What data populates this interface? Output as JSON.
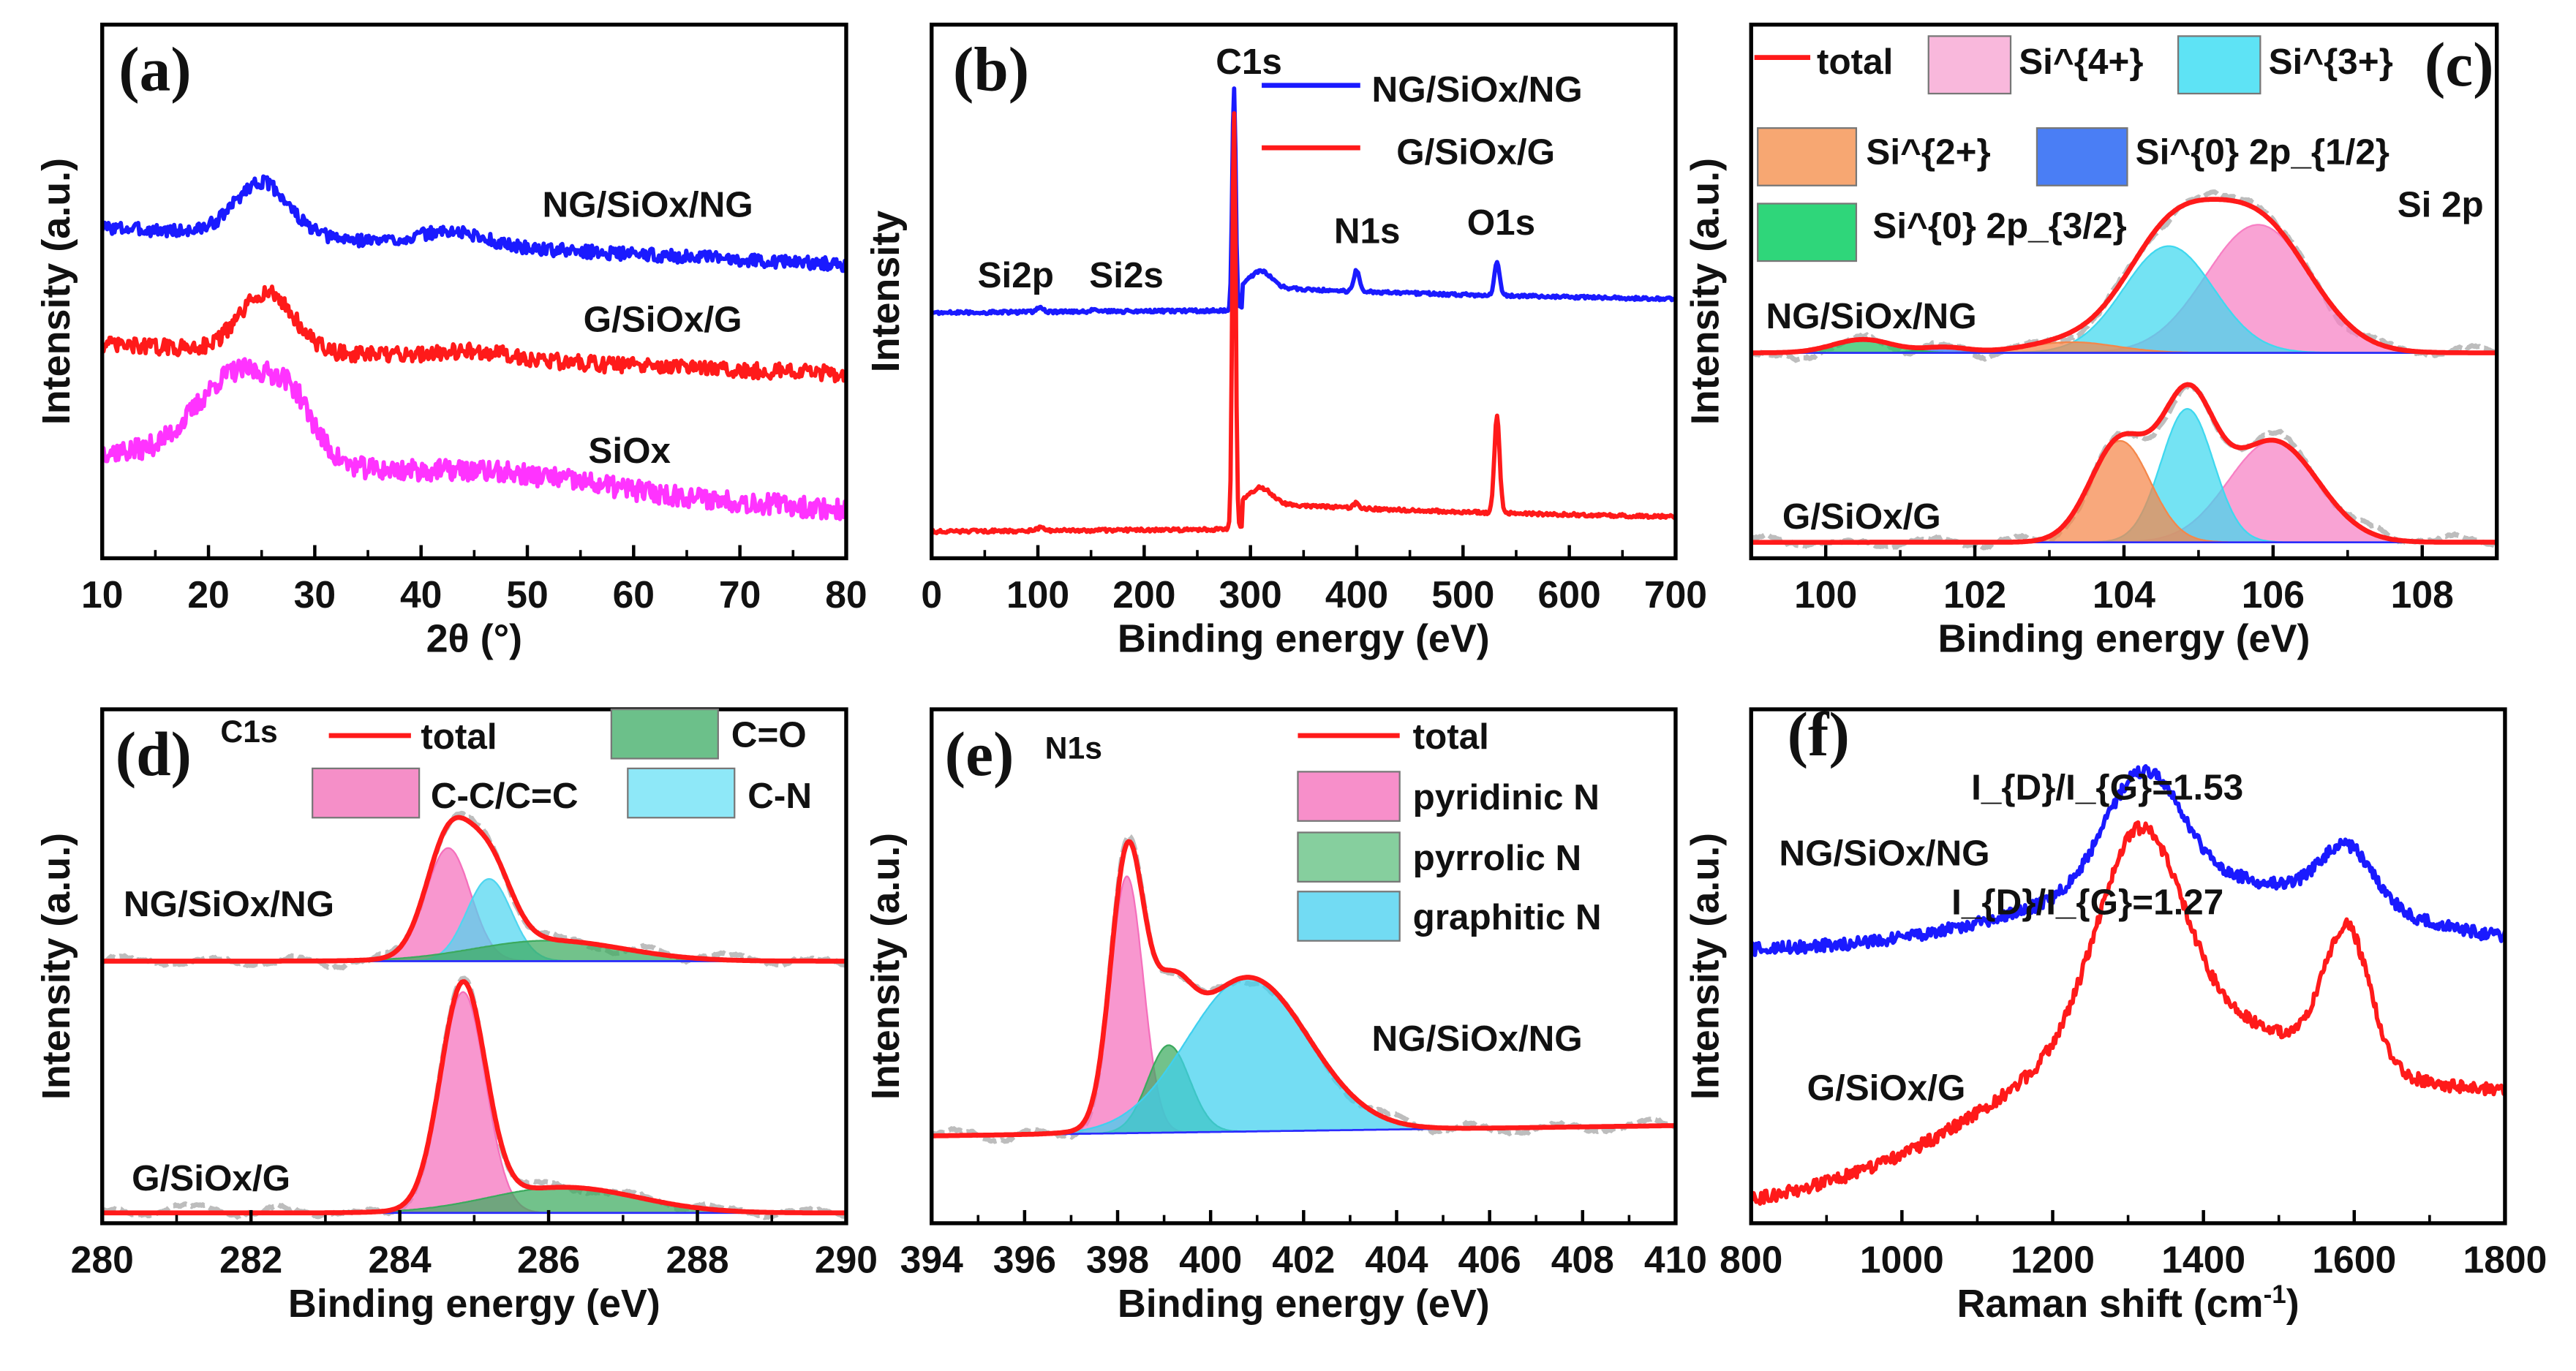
{
  "chart_data": [
    {
      "panel": "(a)",
      "type": "line",
      "xlabel": "2θ (°)",
      "ylabel": "Intensity (a.u.)",
      "xlim": [
        10,
        80
      ],
      "xticks": [
        10,
        20,
        30,
        40,
        50,
        60,
        70,
        80
      ],
      "ylim": [
        0,
        1
      ],
      "annotations": [
        "NG/SiOx/NG",
        "G/SiOx/G",
        "SiOx"
      ],
      "legend": [],
      "series": [
        {
          "name": "NG/SiOx/NG",
          "color": "#1a1aff",
          "offset": 0.62,
          "slope": -0.07,
          "noise": 0.012,
          "peaks": [
            [
              25,
              0.1,
              2.5
            ],
            [
              43,
              0.025,
              3
            ]
          ]
        },
        {
          "name": "G/SiOx/G",
          "color": "#ff1a1a",
          "offset": 0.4,
          "slope": -0.055,
          "noise": 0.015,
          "peaks": [
            [
              25.5,
              0.11,
              2.5
            ],
            [
              45,
              0.015,
              4
            ]
          ]
        },
        {
          "name": "SiOx",
          "color": "#ff33ff",
          "offset": 0.2,
          "slope": -0.11,
          "noise": 0.02,
          "peaks": [
            [
              23,
              0.17,
              4
            ],
            [
              28,
              0.07,
              2
            ],
            [
              48,
              0.02,
              8
            ]
          ]
        }
      ]
    },
    {
      "panel": "(b)",
      "type": "line",
      "xlabel": "Binding energy (eV)",
      "ylabel": "Intensity",
      "xlim": [
        0,
        700
      ],
      "xticks": [
        0,
        100,
        200,
        300,
        400,
        500,
        600,
        700
      ],
      "ylim": [
        0,
        1
      ],
      "annotations": [
        "C1s",
        "Si2p",
        "Si2s",
        "N1s",
        "O1s"
      ],
      "legend": [
        {
          "label": "NG/SiOx/NG",
          "kind": "line",
          "color": "#1a1aff"
        },
        {
          "label": "G/SiOx/G",
          "kind": "line",
          "color": "#ff1a1a"
        }
      ],
      "series": [
        {
          "name": "NG/SiOx/NG",
          "color": "#1a1aff",
          "offset": 0.46,
          "slope": 0.01,
          "noise": 0.003,
          "step": [
            292,
            0.045
          ],
          "peaks": [
            [
              284.5,
              0.42,
              1.6
            ],
            [
              310,
              0.03,
              10
            ],
            [
              400,
              0.04,
              2.5
            ],
            [
              532,
              0.06,
              2.5
            ],
            [
              102,
              0.01,
              3
            ],
            [
              153,
              0.006,
              3
            ]
          ]
        },
        {
          "name": "G/SiOx/G",
          "color": "#ff1a1a",
          "offset": 0.05,
          "slope": 0.01,
          "noise": 0.003,
          "step": [
            292,
            0.05
          ],
          "peaks": [
            [
              284.5,
              0.78,
              1.6
            ],
            [
              310,
              0.03,
              10
            ],
            [
              400,
              0.01,
              2.5
            ],
            [
              532,
              0.18,
              2.5
            ],
            [
              102,
              0.006,
              3
            ]
          ]
        }
      ]
    },
    {
      "panel": "(c)",
      "type": "area",
      "title": "Si 2p",
      "xlabel": "Binding energy (eV)",
      "ylabel": "Intensity (a.u.)",
      "xlim": [
        99,
        109
      ],
      "xticks": [
        100,
        102,
        104,
        106,
        108
      ],
      "ylim": [
        0,
        1
      ],
      "annotations": [
        "NG/SiOx/NG",
        "G/SiOx/G"
      ],
      "legend": [
        {
          "label": "total",
          "kind": "line",
          "color": "#ff1a1a"
        },
        {
          "label": "Si^{4+}",
          "kind": "box",
          "color": "#f9b8dc"
        },
        {
          "label": "Si^{3+}",
          "kind": "box",
          "color": "#5ee3f5"
        },
        {
          "label": "Si^{2+}",
          "kind": "box",
          "color": "#f7a772"
        },
        {
          "label": "Si^{0} 2p_{1/2}",
          "kind": "box",
          "color": "#4a7ef5"
        },
        {
          "label": "Si^{0}  2p_{3/2}",
          "kind": "box",
          "color": "#2fd67a"
        }
      ],
      "series": [
        {
          "name": "NG/SiOx/NG",
          "total_color": "#ff1a1a",
          "offset": 0.385,
          "slope": 0.0,
          "raw": true,
          "components": [
            {
              "name": "Si4+",
              "color": "#f77fc4",
              "peak": [
                105.8,
                0.24,
                0.7
              ]
            },
            {
              "name": "Si3+",
              "color": "#3fd8ef",
              "peak": [
                104.6,
                0.2,
                0.6
              ]
            },
            {
              "name": "Si2+",
              "color": "#f5874a",
              "peak": [
                103.3,
                0.02,
                0.6
              ]
            },
            {
              "name": "Si0 2p1/2",
              "color": "#2f6ef0",
              "peak": [
                101.6,
                0.01,
                0.3
              ]
            },
            {
              "name": "Si0 2p3/2",
              "color": "#1fc060",
              "peak": [
                100.5,
                0.025,
                0.4
              ]
            }
          ]
        },
        {
          "name": "G/SiOx/G",
          "total_color": "#ff1a1a",
          "offset": 0.03,
          "slope": 0.0,
          "raw": true,
          "components": [
            {
              "name": "Si4+",
              "color": "#f77fc4",
              "peak": [
                106.0,
                0.19,
                0.6
              ]
            },
            {
              "name": "Si3+",
              "color": "#3fd8ef",
              "peak": [
                104.85,
                0.25,
                0.35
              ]
            },
            {
              "name": "Si2+",
              "color": "#f5874a",
              "peak": [
                103.95,
                0.19,
                0.4
              ]
            }
          ]
        }
      ]
    },
    {
      "panel": "(d)",
      "type": "area",
      "title": "C1s",
      "xlabel": "Binding energy (eV)",
      "ylabel": "Intensity (a.u.)",
      "xlim": [
        280,
        290
      ],
      "xticks": [
        280,
        282,
        284,
        286,
        288,
        290
      ],
      "ylim": [
        0,
        1
      ],
      "annotations": [
        "NG/SiOx/NG",
        "G/SiOx/G"
      ],
      "legend": [
        {
          "label": "total",
          "kind": "line",
          "color": "#ff1a1a"
        },
        {
          "label": "C=O",
          "kind": "box",
          "color": "#6cc08a"
        },
        {
          "label": "C-C/C=C",
          "kind": "box",
          "color": "#f58fc8"
        },
        {
          "label": "C-N",
          "kind": "box",
          "color": "#8ee8f8"
        }
      ],
      "series": [
        {
          "name": "NG/SiOx/NG",
          "total_color": "#ff1a1a",
          "offset": 0.51,
          "slope": 0.0,
          "raw": true,
          "components": [
            {
              "name": "C-C/C=C",
              "color": "#f56fbc",
              "peak": [
                284.65,
                0.22,
                0.3
              ]
            },
            {
              "name": "C-N",
              "color": "#4fd6f0",
              "peak": [
                285.2,
                0.16,
                0.3
              ]
            },
            {
              "name": "C=O",
              "color": "#3caa5e",
              "peak": [
                286.0,
                0.04,
                1.0
              ]
            }
          ]
        },
        {
          "name": "G/SiOx/G",
          "total_color": "#ff1a1a",
          "offset": 0.02,
          "slope": 0.0,
          "raw": true,
          "components": [
            {
              "name": "C-C/C=C",
              "color": "#f56fbc",
              "peak": [
                284.85,
                0.43,
                0.3
              ]
            },
            {
              "name": "C=O",
              "color": "#3caa5e",
              "peak": [
                286.2,
                0.05,
                1.0
              ]
            }
          ]
        }
      ]
    },
    {
      "panel": "(e)",
      "type": "area",
      "title": "N1s",
      "xlabel": "Binding energy (eV)",
      "ylabel": "Intensity (a.u.)",
      "xlim": [
        394,
        410
      ],
      "xticks": [
        394,
        396,
        398,
        400,
        402,
        404,
        406,
        408,
        410
      ],
      "ylim": [
        0,
        1
      ],
      "annotations": [
        "NG/SiOx/NG"
      ],
      "legend": [
        {
          "label": "total",
          "kind": "line",
          "color": "#ff1a1a"
        },
        {
          "label": "pyridinic N",
          "kind": "box",
          "color": "#f78fca"
        },
        {
          "label": "pyrrolic N",
          "kind": "box",
          "color": "#86cf9e"
        },
        {
          "label": "graphitic N",
          "kind": "box",
          "color": "#72dbf3"
        }
      ],
      "series": [
        {
          "name": "NG/SiOx/NG",
          "total_color": "#ff1a1a",
          "offset": 0.17,
          "slope": 0.02,
          "raw": true,
          "components": [
            {
              "name": "pyridinic N",
              "color": "#f56fbc",
              "peak": [
                398.2,
                0.5,
                0.35
              ]
            },
            {
              "name": "pyrrolic N",
              "color": "#3caa5e",
              "peak": [
                399.1,
                0.17,
                0.45
              ]
            },
            {
              "name": "graphitic N",
              "color": "#3fd0ef",
              "peak": [
                400.8,
                0.3,
                1.3
              ]
            }
          ]
        }
      ]
    },
    {
      "panel": "(f)",
      "type": "line",
      "xlabel": "Raman shift (cm^{-1})",
      "ylabel": "Intensity (a.u.)",
      "xlim": [
        800,
        1800
      ],
      "xticks": [
        800,
        1000,
        1200,
        1400,
        1600,
        1800
      ],
      "ylim": [
        0,
        1
      ],
      "annotations": [
        "NG/SiOx/NG",
        "G/SiOx/G",
        "I_{D}/I_{G}=1.53",
        "I_{D}/I_{G}=1.27"
      ],
      "legend": [],
      "series": [
        {
          "name": "NG/SiOx/NG",
          "color": "#1a1aff",
          "offset": 0.53,
          "slope": 0.0,
          "noise": 0.012,
          "peaks": [
            [
              1400,
              0.14,
              220
            ],
            [
              1320,
              0.22,
              50
            ],
            [
              1590,
              0.11,
              35
            ]
          ],
          "ID_IG": 1.53
        },
        {
          "name": "G/SiOx/G",
          "color": "#ff1a1a",
          "offset": 0.04,
          "slope": 0.2,
          "noise": 0.012,
          "peaks": [
            [
              1350,
              0.25,
              200
            ],
            [
              1315,
              0.38,
              55
            ],
            [
              1590,
              0.26,
              30
            ]
          ],
          "ID_IG": 1.27
        }
      ]
    }
  ]
}
